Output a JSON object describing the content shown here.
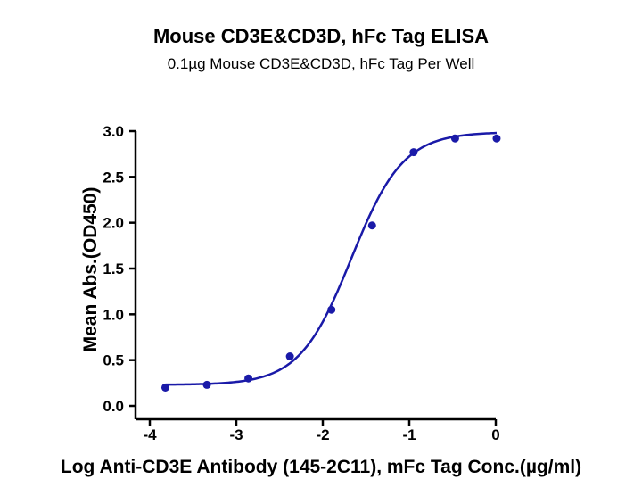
{
  "chart_data": {
    "type": "scatter",
    "title": "Mouse CD3E&CD3D, hFc Tag ELISA",
    "subtitle": "0.1µg Mouse CD3E&CD3D, hFc Tag Per Well",
    "xlabel": "Log Anti-CD3E Antibody (145-2C11), mFc Tag Conc.(µg/ml)",
    "ylabel": "Mean Abs.(OD450)",
    "xlim": [
      -4,
      0
    ],
    "ylim": [
      0,
      3
    ],
    "x_ticks": [
      -4,
      -3,
      -2,
      -1,
      0
    ],
    "x_tick_labels": [
      "-4",
      "-3",
      "-2",
      "-1",
      "0"
    ],
    "y_ticks": [
      0,
      0.5,
      1,
      1.5,
      2,
      2.5,
      3
    ],
    "y_tick_labels": [
      "0.0",
      "0.5",
      "1.0",
      "1.5",
      "2.0",
      "2.5",
      "3.0"
    ],
    "grid": false,
    "color": "#1a1aa8",
    "series": [
      {
        "x": [
          -3.82,
          -3.34,
          -2.86,
          -2.38,
          -1.9,
          -1.43,
          -0.95,
          -0.47,
          0.01
        ],
        "y": [
          0.2,
          0.23,
          0.3,
          0.54,
          1.05,
          1.97,
          2.77,
          2.92,
          2.92
        ],
        "fit": {
          "model": "4PL",
          "bottom": 0.23,
          "top": 2.99,
          "logEC50": -1.67,
          "hill": 1.45
        }
      }
    ]
  }
}
